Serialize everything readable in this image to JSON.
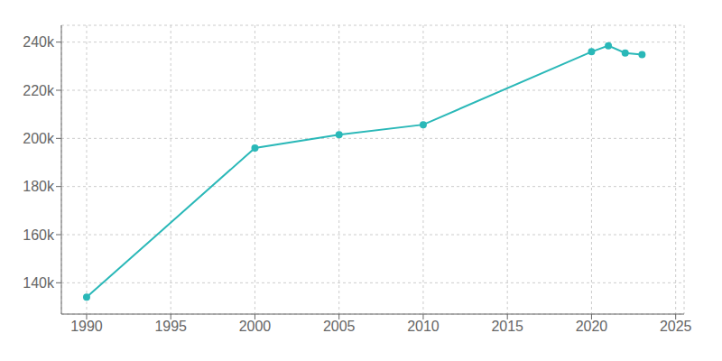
{
  "chart_data": {
    "type": "line",
    "x": [
      1990,
      2000,
      2005,
      2010,
      2020,
      2021,
      2022,
      2023
    ],
    "values": [
      134000,
      196000,
      201500,
      205700,
      236000,
      238500,
      235500,
      234800
    ],
    "color": "#2ab8b8",
    "marker": "circle",
    "grid": true,
    "xlim": [
      1988.5,
      2025.5
    ],
    "ylim": [
      127000,
      247000
    ],
    "xticks": [
      1990,
      1995,
      2000,
      2005,
      2010,
      2015,
      2020,
      2025
    ],
    "yticks": [
      {
        "value": 140000,
        "label": "140k"
      },
      {
        "value": 160000,
        "label": "160k"
      },
      {
        "value": 180000,
        "label": "180k"
      },
      {
        "value": 200000,
        "label": "200k"
      },
      {
        "value": 220000,
        "label": "220k"
      },
      {
        "value": 240000,
        "label": "240k"
      }
    ]
  }
}
